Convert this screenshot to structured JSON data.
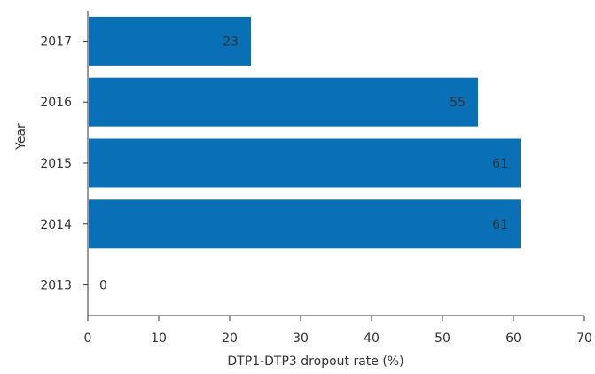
{
  "chart_data": {
    "type": "bar",
    "orientation": "horizontal",
    "categories": [
      "2013",
      "2014",
      "2015",
      "2016",
      "2017"
    ],
    "values": [
      0,
      61,
      61,
      55,
      23
    ],
    "data_labels": [
      "0",
      "61",
      "61",
      "55",
      "23"
    ],
    "xlabel": "DTP1-DTP3 dropout rate (%)",
    "ylabel": "Year",
    "xlim": [
      0,
      70
    ],
    "x_ticks": [
      0,
      10,
      20,
      30,
      40,
      50,
      60,
      70
    ],
    "grid": false,
    "bar_color": "#0a70b5"
  }
}
